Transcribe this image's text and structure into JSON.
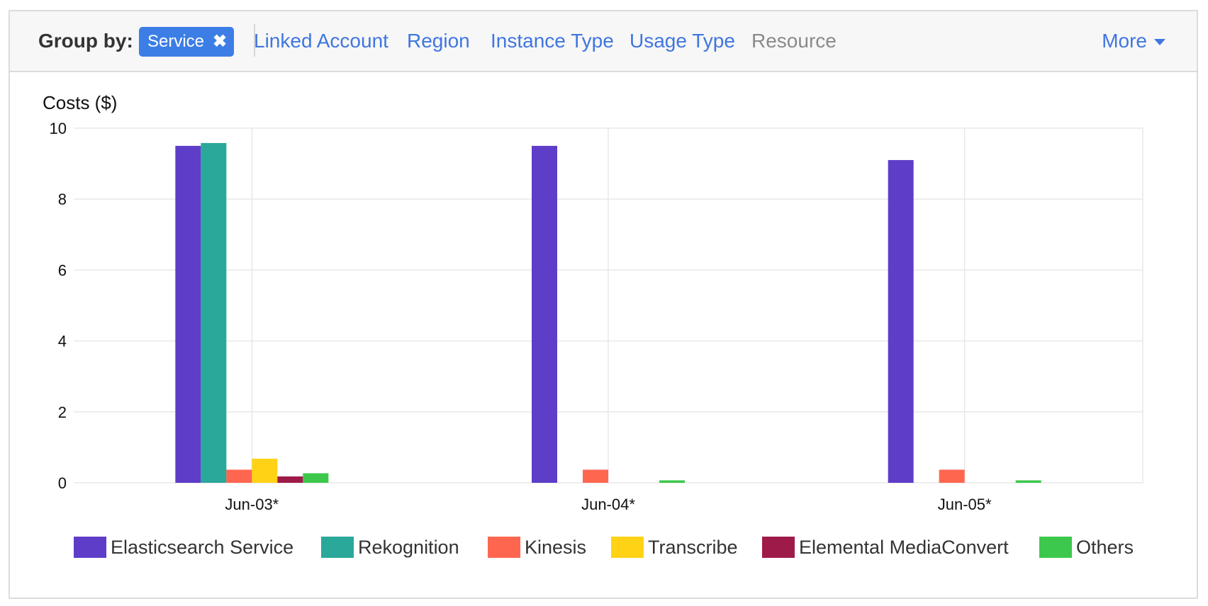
{
  "groupbar": {
    "label": "Group by:",
    "active_chip": "Service",
    "dimensions": [
      "Linked Account",
      "Region",
      "Instance Type",
      "Usage Type",
      "Resource"
    ],
    "disabled": [
      "Resource"
    ],
    "more_label": "More"
  },
  "colors": {
    "accent": "#3c7ee6",
    "link": "#3f76e0",
    "grid": "#e8e8e8"
  },
  "chart_data": {
    "type": "bar",
    "ylabel": "Costs ($)",
    "ylim": [
      0,
      10
    ],
    "yticks": [
      0,
      2,
      4,
      6,
      8,
      10
    ],
    "categories": [
      "Jun-03*",
      "Jun-04*",
      "Jun-05*"
    ],
    "series": [
      {
        "name": "Elasticsearch Service",
        "color": "#5e3dc9",
        "values": [
          9.5,
          9.5,
          9.1
        ]
      },
      {
        "name": "Rekognition",
        "color": "#2aa89a",
        "values": [
          9.58,
          0,
          0
        ]
      },
      {
        "name": "Kinesis",
        "color": "#ff6650",
        "values": [
          0.37,
          0.37,
          0.37
        ]
      },
      {
        "name": "Transcribe",
        "color": "#ffd216",
        "values": [
          0.68,
          0,
          0
        ]
      },
      {
        "name": "Elemental MediaConvert",
        "color": "#9e1a49",
        "values": [
          0.18,
          0,
          0
        ]
      },
      {
        "name": "Others",
        "color": "#3dc84d",
        "values": [
          0.27,
          0.07,
          0.07
        ]
      }
    ],
    "grid": true,
    "legend": "bottom"
  }
}
